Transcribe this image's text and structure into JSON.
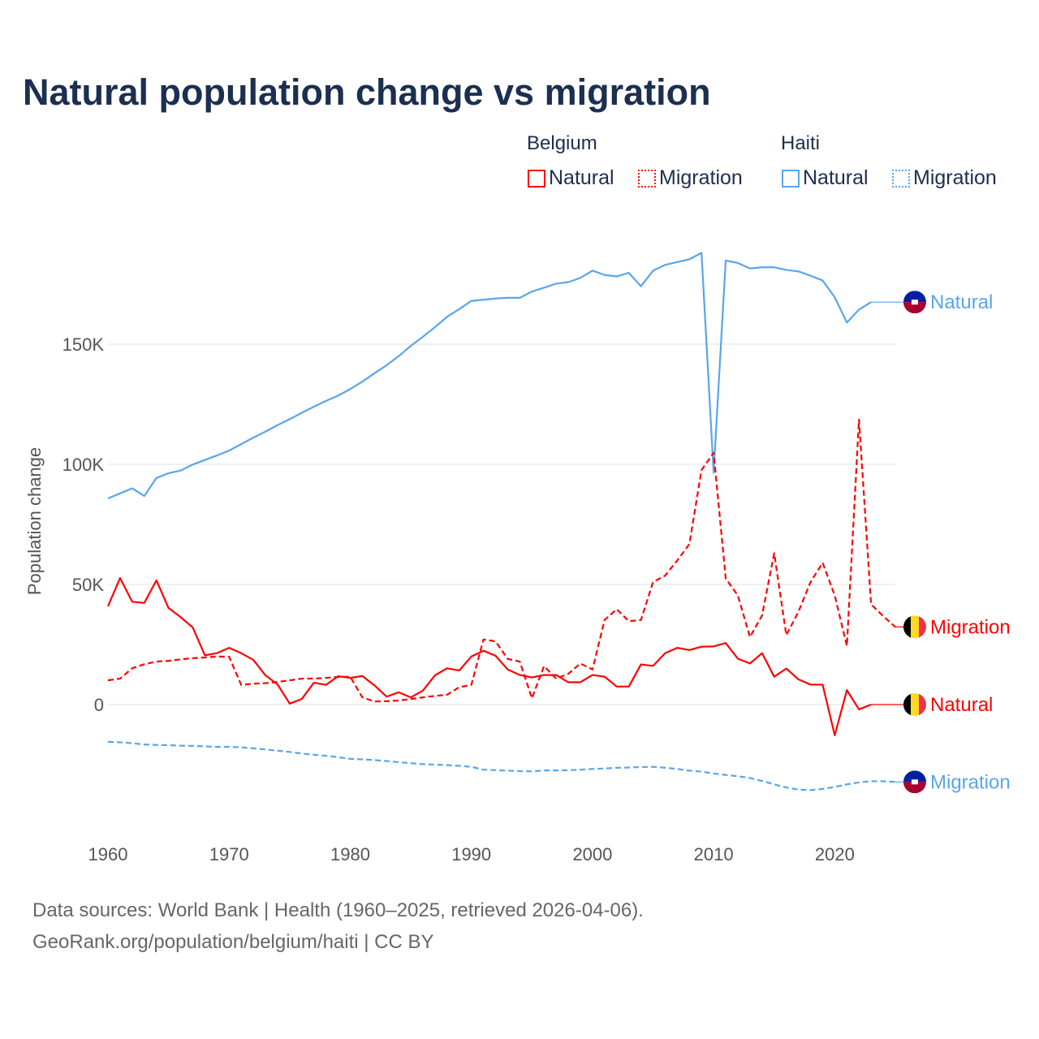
{
  "chart_data": {
    "type": "line",
    "title": "Natural population change vs migration",
    "xlabel": "",
    "ylabel": "Population change",
    "xlim": [
      1960,
      2025
    ],
    "ylim": [
      -45000,
      190000
    ],
    "x_ticks": [
      1960,
      1970,
      1980,
      1990,
      2000,
      2010,
      2020
    ],
    "x_tick_labels": [
      "1960",
      "1970",
      "1980",
      "1990",
      "2000",
      "2010",
      "2020"
    ],
    "y_ticks": [
      0,
      50000,
      100000,
      150000
    ],
    "y_tick_labels": [
      "0",
      "50K",
      "100K",
      "150K"
    ],
    "grid": true,
    "legend": {
      "placement": "top-right",
      "groups": [
        {
          "name": "Belgium",
          "items": [
            "Natural",
            "Migration"
          ]
        },
        {
          "name": "Haiti",
          "items": [
            "Natural",
            "Migration"
          ]
        }
      ]
    },
    "colors": {
      "Belgium": "#ff0000",
      "Haiti": "#5aa5ea"
    },
    "start_year": 1960,
    "series": [
      {
        "country": "Haiti",
        "name": "Natural",
        "label": "Natural",
        "dash": "solid",
        "flag": "haiti",
        "values": [
          85.8,
          87.9,
          90,
          86.8,
          94.3,
          96.3,
          97.4,
          99.9,
          101.8,
          103.7,
          105.7,
          108.4,
          111.1,
          113.6,
          116.3,
          118.8,
          121.4,
          124,
          126.4,
          128.6,
          131.3,
          134.4,
          137.9,
          141.2,
          145,
          149.3,
          153.1,
          157.1,
          161.4,
          164.6,
          168,
          168.5,
          169,
          169.3,
          169.3,
          171.9,
          173.5,
          175.2,
          175.8,
          177.6,
          180.6,
          178.8,
          178.2,
          179.7,
          174.1,
          180.6,
          183,
          184.2,
          185.3,
          188,
          96.5,
          184.8,
          183.8,
          181.5,
          182,
          182,
          180.9,
          180.3,
          178.5,
          176.5,
          169.5,
          159,
          164.4,
          167.5
        ]
      },
      {
        "country": "Belgium",
        "name": "Migration",
        "label": "Migration",
        "dash": "dashed",
        "flag": "belgium",
        "values": [
          10.1,
          10.8,
          15.1,
          16.8,
          17.9,
          18.2,
          18.8,
          19.3,
          19.6,
          20,
          19.9,
          8.2,
          8.7,
          8.9,
          9.4,
          10.1,
          10.8,
          10.8,
          11.1,
          11.5,
          11.6,
          3,
          1.3,
          1.4,
          1.7,
          2.3,
          3,
          3.6,
          4.1,
          7.2,
          8.2,
          27.1,
          26.3,
          19,
          17.9,
          2.6,
          16,
          10.8,
          12.8,
          17.1,
          14.6,
          35.2,
          39.7,
          34.7,
          35.2,
          51,
          53.7,
          60,
          66.8,
          97.6,
          104.8,
          52.5,
          45.4,
          28.1,
          37.1,
          63,
          28.9,
          38.6,
          51,
          59,
          45.4,
          24.4,
          118.6,
          41.7,
          36.8,
          32.3
        ]
      },
      {
        "country": "Belgium",
        "name": "Natural",
        "label": "Natural",
        "dash": "solid",
        "flag": "belgium",
        "values": [
          40.9,
          52.7,
          42.8,
          42.3,
          51.7,
          40.2,
          36.4,
          32.1,
          20.5,
          21.4,
          23.6,
          21.4,
          18.6,
          12.2,
          8.4,
          0.4,
          2.3,
          9.1,
          8.2,
          11.8,
          11.1,
          11.9,
          8,
          3.3,
          5.1,
          3,
          5.8,
          12.2,
          15.1,
          14.2,
          20,
          22.4,
          20.3,
          14.6,
          12.3,
          11.3,
          12.3,
          12.3,
          9.3,
          9.3,
          12.3,
          11.6,
          7.5,
          7.5,
          16.7,
          16.1,
          21.4,
          23.6,
          22.7,
          24.1,
          24.2,
          25.6,
          19.1,
          17.1,
          21.4,
          11.6,
          15,
          10.5,
          8.3,
          8.3,
          -12.8,
          6,
          -2,
          0
        ]
      },
      {
        "country": "Haiti",
        "name": "Migration",
        "label": "Migration",
        "dash": "dashed",
        "flag": "haiti",
        "values": [
          -15.5,
          -15.7,
          -16.1,
          -16.6,
          -16.8,
          -16.9,
          -17.1,
          -17.2,
          -17.4,
          -17.6,
          -17.6,
          -17.8,
          -18.2,
          -18.7,
          -19.2,
          -19.7,
          -20.4,
          -20.9,
          -21.3,
          -21.9,
          -22.6,
          -22.8,
          -23.1,
          -23.5,
          -24,
          -24.4,
          -24.8,
          -25,
          -25.2,
          -25.5,
          -25.9,
          -27.1,
          -27.3,
          -27.5,
          -27.7,
          -27.8,
          -27.4,
          -27.4,
          -27.3,
          -27.1,
          -26.8,
          -26.6,
          -26.3,
          -26.2,
          -26,
          -25.9,
          -26.3,
          -26.8,
          -27.5,
          -27.9,
          -28.7,
          -29.3,
          -29.8,
          -30.6,
          -31.8,
          -33.2,
          -34.5,
          -35.4,
          -35.6,
          -35.1,
          -34.3,
          -33.2,
          -32.4,
          -31.9,
          -31.9,
          -32.2
        ]
      }
    ],
    "value_unit": "thousands"
  },
  "footer": {
    "line1": "Data sources: World Bank | Health (1960–2025, retrieved 2026-04-06).",
    "line2": "GeoRank.org/population/belgium/haiti | CC BY"
  }
}
